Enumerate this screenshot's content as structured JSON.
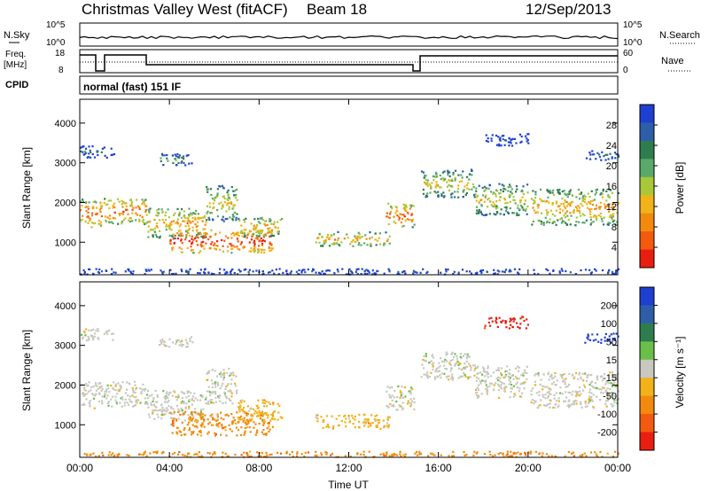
{
  "header": {
    "title": "Christmas Valley West (fitACF)",
    "beam": "Beam 18",
    "date": "12/Sep/2013"
  },
  "top_panels": {
    "nsky_label": "N.Sky",
    "nsearch_label": "N.Search",
    "noise_ticks_left": [
      "10^5",
      "10^0"
    ],
    "noise_ticks_right": [
      "10^5",
      "10^0"
    ],
    "freq_label": "Freq.",
    "freq_unit": "[MHz]",
    "freq_ticks": [
      "18",
      "8"
    ],
    "nave_label": "Nave",
    "nave_ticks": [
      "60",
      "0"
    ],
    "cpid_label": "CPID",
    "cpid_text": "normal (fast) 151 IF"
  },
  "colors": {
    "power": [
      "#1f3fd0",
      "#2e5ea8",
      "#2f7d4e",
      "#5aa86a",
      "#a8c83a",
      "#f2b21a",
      "#f28a10",
      "#f25a10",
      "#e81e10"
    ],
    "velocity": [
      "#1f3fd0",
      "#2e5ea8",
      "#2f7d4e",
      "#6abf4a",
      "#c8c8c0",
      "#f2b21a",
      "#f28a10",
      "#f25a10",
      "#e81e10"
    ]
  },
  "chart_data": [
    {
      "type": "heatmap",
      "name": "power-panel",
      "ylabel": "Slant Range [km]",
      "y_ticks": [
        "4000",
        "3000",
        "2000",
        "1000"
      ],
      "ylim": [
        180,
        4600
      ],
      "x_ticks": [
        "00:00",
        "04:00",
        "08:00",
        "12:00",
        "16:00",
        "20:00",
        "00:00"
      ],
      "xlim_hours": [
        0,
        24
      ],
      "colorbar_label": "Power [dB]",
      "colorbar_ticks": [
        "28",
        "24",
        "20",
        "16",
        "12",
        "8",
        "4"
      ],
      "colorbar_range": [
        0,
        30
      ]
    },
    {
      "type": "heatmap",
      "name": "velocity-panel",
      "ylabel": "Slant Range [km]",
      "y_ticks": [
        "4000",
        "3000",
        "2000",
        "1000"
      ],
      "ylim": [
        180,
        4600
      ],
      "x_ticks": [
        "00:00",
        "04:00",
        "08:00",
        "12:00",
        "16:00",
        "20:00",
        "00:00"
      ],
      "xlabel": "Time UT",
      "xlim_hours": [
        0,
        24
      ],
      "colorbar_label": "Velocity [m s⁻¹]",
      "colorbar_ticks": [
        "200",
        "100",
        "50",
        "15",
        "-15",
        "-50",
        "-100",
        "-200"
      ],
      "colorbar_range": [
        -250,
        250
      ]
    }
  ]
}
